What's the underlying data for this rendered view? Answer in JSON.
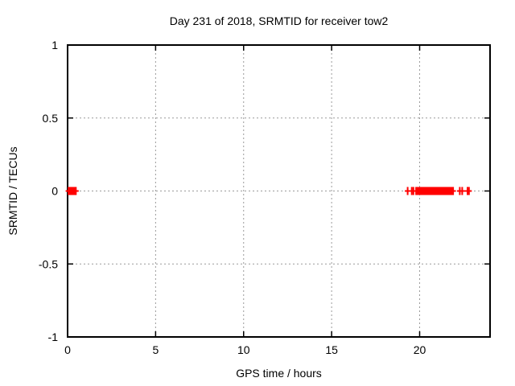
{
  "chart_data": {
    "type": "scatter",
    "title": "Day 231 of 2018, SRMTID for receiver tow2",
    "xlabel": "GPS time / hours",
    "ylabel": "SRMTID / TECUs",
    "xlim": [
      0,
      24
    ],
    "ylim": [
      -1,
      1
    ],
    "grid": true,
    "legend": "none",
    "marker": "plus",
    "xticks": [
      {
        "v": 0,
        "label": "0"
      },
      {
        "v": 5,
        "label": "5"
      },
      {
        "v": 10,
        "label": "10"
      },
      {
        "v": 15,
        "label": "15"
      },
      {
        "v": 20,
        "label": "20"
      }
    ],
    "yticks": [
      {
        "v": -1,
        "label": "-1"
      },
      {
        "v": -0.5,
        "label": "-0.5"
      },
      {
        "v": 0,
        "label": "0"
      },
      {
        "v": 0.5,
        "label": "0.5"
      },
      {
        "v": 1,
        "label": "1"
      }
    ],
    "series": [
      {
        "name": "SRMTID",
        "color": "#ff0000",
        "y_value": 0,
        "x": [
          0.05,
          0.13,
          0.22,
          0.3,
          0.38,
          0.47,
          19.32,
          19.55,
          19.65,
          19.8,
          19.85,
          19.9,
          19.95,
          20.0,
          20.05,
          20.1,
          20.15,
          20.2,
          20.25,
          20.3,
          20.35,
          20.4,
          20.45,
          20.5,
          20.55,
          20.6,
          20.65,
          20.7,
          20.75,
          20.8,
          20.85,
          20.9,
          20.95,
          21.0,
          21.05,
          21.1,
          21.15,
          21.2,
          21.25,
          21.3,
          21.35,
          21.4,
          21.45,
          21.5,
          21.55,
          21.6,
          21.65,
          21.7,
          21.75,
          21.8,
          21.85,
          21.9,
          22.28,
          22.42,
          22.72,
          22.8
        ]
      }
    ]
  },
  "colors": {
    "background": "#ffffff",
    "border": "#000000",
    "grid": "#9a9a9a",
    "text": "#000000",
    "marker": "#ff0000"
  }
}
